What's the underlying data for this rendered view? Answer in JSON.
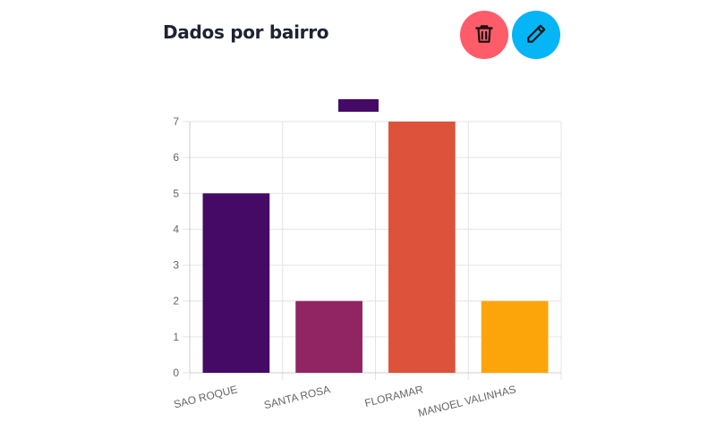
{
  "header": {
    "title": "Dados por bairro"
  },
  "actions": {
    "delete_icon": "trash-icon",
    "edit_icon": "pencil-icon",
    "delete_color": "#ff5c6a",
    "edit_color": "#05b5f5"
  },
  "chart_data": {
    "type": "bar",
    "categories": [
      "SAO ROQUE",
      "SANTA ROSA",
      "FLORAMAR",
      "MANOEL VALINHAS"
    ],
    "values": [
      5,
      2,
      7,
      2
    ],
    "colors": [
      "#440a66",
      "#912462",
      "#dd523a",
      "#fca50a"
    ],
    "legend_color": "#440a66",
    "legend_position": "top",
    "y_ticks": [
      "0",
      "1",
      "2",
      "3",
      "4",
      "5",
      "6",
      "7"
    ],
    "ylim": [
      0,
      7
    ],
    "grid": true
  }
}
